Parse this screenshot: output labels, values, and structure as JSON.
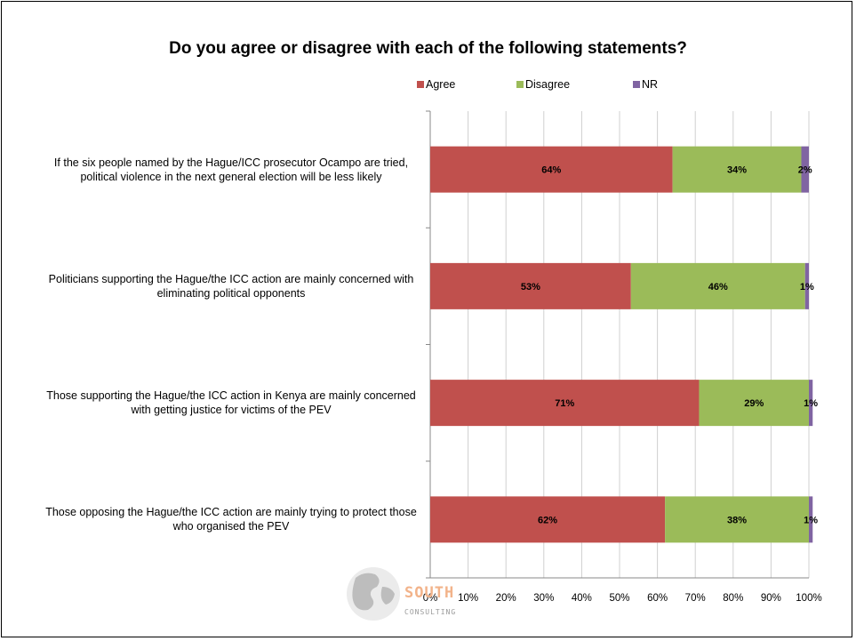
{
  "chart_data": {
    "type": "bar",
    "orientation": "horizontal",
    "stacked": true,
    "title": "Do you agree or disagree with each of the following statements?",
    "categories": [
      "If the six people named by the Hague/ICC prosecutor Ocampo are tried, political violence in the next general election will be less likely",
      "Politicians supporting the Hague/the ICC action are mainly concerned with eliminating political opponents",
      "Those supporting the Hague/the ICC action in Kenya are mainly concerned with getting justice for victims of the PEV",
      "Those opposing the Hague/the ICC action are mainly trying to protect those who organised the PEV"
    ],
    "series": [
      {
        "name": "Agree",
        "color": "#c0504d",
        "values": [
          64,
          53,
          71,
          62
        ]
      },
      {
        "name": "Disagree",
        "color": "#9bbb59",
        "values": [
          34,
          46,
          29,
          38
        ]
      },
      {
        "name": "NR",
        "color": "#8064a2",
        "values": [
          2,
          1,
          1,
          1
        ]
      }
    ],
    "value_labels": [
      [
        "64%",
        "53%",
        "71%",
        "62%"
      ],
      [
        "34%",
        "46%",
        "29%",
        "38%"
      ],
      [
        "2%",
        "1%",
        "1%",
        "1%"
      ]
    ],
    "xlim": [
      0,
      100
    ],
    "x_ticks": [
      0,
      10,
      20,
      30,
      40,
      50,
      60,
      70,
      80,
      90,
      100
    ],
    "x_tick_labels": [
      "0%",
      "10%",
      "20%",
      "30%",
      "40%",
      "50%",
      "60%",
      "70%",
      "80%",
      "90%",
      "100%"
    ],
    "grid": "vertical",
    "legend_position": "top"
  },
  "logo": {
    "name": "South Consulting",
    "text": "SOUTH",
    "subtext": "CONSULTING",
    "icon": "globe-icon"
  }
}
